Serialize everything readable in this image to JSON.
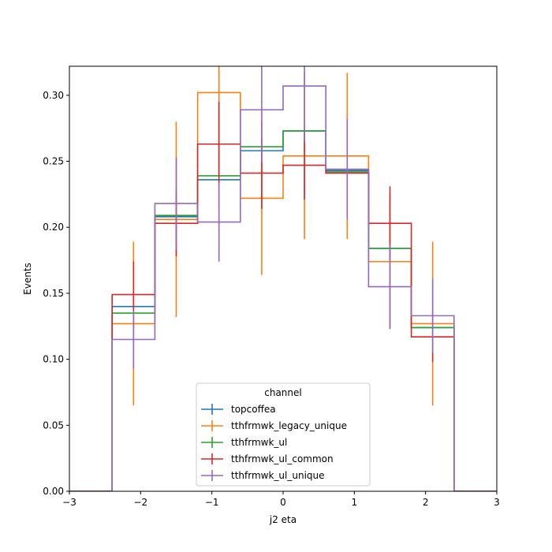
{
  "chart_data": {
    "type": "step",
    "title": "",
    "xlabel": "j2 eta",
    "ylabel": "Events",
    "xlim": [
      -3,
      3
    ],
    "ylim": [
      0,
      0.322
    ],
    "xticks": [
      -3,
      -2,
      -1,
      0,
      1,
      2,
      3
    ],
    "xtick_labels": [
      "−3",
      "−2",
      "−1",
      "0",
      "1",
      "2",
      "3"
    ],
    "yticks": [
      0.0,
      0.05,
      0.1,
      0.15,
      0.2,
      0.25,
      0.3
    ],
    "ytick_labels": [
      "0.00",
      "0.05",
      "0.10",
      "0.15",
      "0.20",
      "0.25",
      "0.30"
    ],
    "grid": false,
    "legend": {
      "title": "channel",
      "placement": "lower-center"
    },
    "bin_edges": [
      -3.0,
      -2.4,
      -1.8,
      -1.2,
      -0.6,
      0.0,
      0.6,
      1.2,
      1.8,
      2.4,
      3.0
    ],
    "series": [
      {
        "name": "topcoffea",
        "color": "#1f77b4",
        "values": [
          0.0,
          0.14,
          0.208,
          0.236,
          0.258,
          0.273,
          0.243,
          0.184,
          0.124,
          0.0
        ],
        "errors": [
          0.0,
          0.0,
          0.0,
          0.0,
          0.0,
          0.0,
          0.0,
          0.0,
          0.0,
          0.0
        ]
      },
      {
        "name": "tthfrmwk_legacy_unique",
        "color": "#ff7f0e",
        "values": [
          0.0,
          0.127,
          0.206,
          0.302,
          0.222,
          0.254,
          0.254,
          0.174,
          0.127,
          0.0
        ],
        "errors": [
          0.0,
          0.062,
          0.074,
          0.09,
          0.058,
          0.063,
          0.063,
          0.051,
          0.062,
          0.0
        ]
      },
      {
        "name": "tthfrmwk_ul",
        "color": "#2ca02c",
        "values": [
          0.0,
          0.135,
          0.209,
          0.239,
          0.261,
          0.273,
          0.242,
          0.184,
          0.124,
          0.0
        ],
        "errors": [
          0.0,
          0.0,
          0.0,
          0.0,
          0.0,
          0.0,
          0.0,
          0.0,
          0.0,
          0.0
        ]
      },
      {
        "name": "tthfrmwk_ul_common",
        "color": "#d62728",
        "values": [
          0.0,
          0.149,
          0.203,
          0.263,
          0.241,
          0.247,
          0.241,
          0.203,
          0.117,
          0.0
        ],
        "errors": [
          0.0,
          0.025,
          0.025,
          0.032,
          0.027,
          0.026,
          0.0,
          0.028,
          0.019,
          0.0
        ]
      },
      {
        "name": "tthfrmwk_ul_unique",
        "color": "#9467bd",
        "values": [
          0.0,
          0.115,
          0.218,
          0.204,
          0.289,
          0.307,
          0.244,
          0.155,
          0.133,
          0.0
        ],
        "errors": [
          0.0,
          0.022,
          0.035,
          0.03,
          0.04,
          0.042,
          0.038,
          0.032,
          0.028,
          0.0
        ]
      }
    ]
  }
}
